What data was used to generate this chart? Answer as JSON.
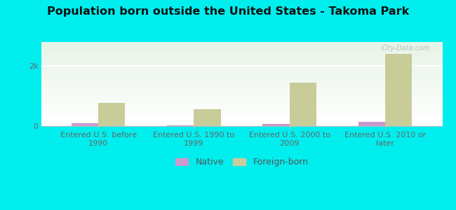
{
  "title": "Population born outside the United States - Takoma Park",
  "categories": [
    "Entered U.S. before\n1990",
    "Entered U.S. 1990 to\n1999",
    "Entered U.S. 2000 to\n2009",
    "Entered U.S. 2010 or\nlater"
  ],
  "native_values": [
    100,
    20,
    60,
    130
  ],
  "foreign_values": [
    780,
    560,
    1450,
    2400
  ],
  "native_color": "#cc99cc",
  "foreign_color": "#c8cc99",
  "background_outer": "#00eeee",
  "ylim": [
    0,
    2800
  ],
  "yticks": [
    0,
    2000
  ],
  "ytick_labels": [
    "0",
    "2k"
  ],
  "bar_width": 0.28,
  "title_fontsize": 11.5,
  "tick_fontsize": 8,
  "legend_fontsize": 9,
  "watermark_text": "City-Data.com",
  "grid_color": "#ffffff",
  "spine_color": "#bbbbbb"
}
